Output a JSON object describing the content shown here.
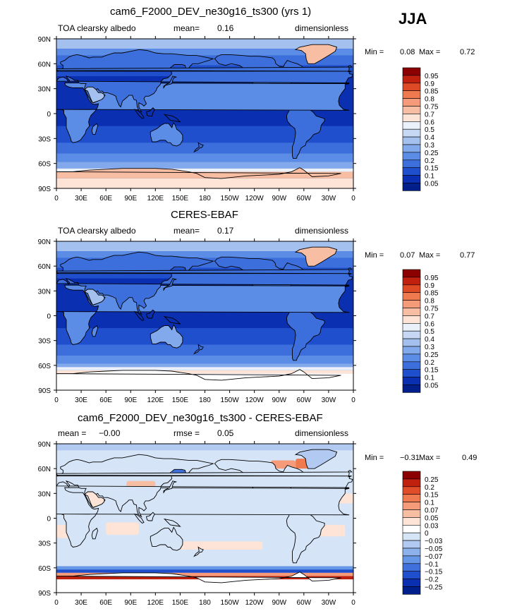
{
  "season": "JJA",
  "panels": [
    {
      "title": "cam6_F2000_DEV_ne30g16_ts300 (yrs 1)",
      "left_label": "TOA clearsky albedo",
      "mid_label": "mean=",
      "mid_value": "0.16",
      "right_label": "dimensionless",
      "min_label": "Min =",
      "min_value": "0.08",
      "max_label": "Max =",
      "max_value": "0.72",
      "colorbar": [
        "0.95",
        "0.9",
        "0.85",
        "0.8",
        "0.75",
        "0.7",
        "0.6",
        "0.5",
        "0.4",
        "0.3",
        "0.25",
        "0.2",
        "0.15",
        "0.1",
        "0.05"
      ]
    },
    {
      "title": "CERES-EBAF",
      "left_label": "TOA clearsky albedo",
      "mid_label": "mean=",
      "mid_value": "0.17",
      "right_label": "dimensionless",
      "min_label": "Min =",
      "min_value": "0.07",
      "max_label": "Max =",
      "max_value": "0.77",
      "colorbar": [
        "0.95",
        "0.9",
        "0.85",
        "0.8",
        "0.75",
        "0.7",
        "0.6",
        "0.5",
        "0.4",
        "0.3",
        "0.25",
        "0.2",
        "0.15",
        "0.1",
        "0.05"
      ]
    },
    {
      "title": "cam6_F2000_DEV_ne30g16_ts300 - CERES-EBAF",
      "left_label": "mean =",
      "left_value": "−0.00",
      "mid_label": "rmse =",
      "mid_value": "0.05",
      "right_label": "dimensionless",
      "min_label": "Min =",
      "min_value": "−0.31",
      "max_label": "Max =",
      "max_value": "0.49",
      "colorbar": [
        "0.25",
        "0.2",
        "0.15",
        "0.1",
        "0.07",
        "0.05",
        "0.03",
        "0",
        "−0.03",
        "−0.05",
        "−0.07",
        "−0.1",
        "−0.15",
        "−0.2",
        "−0.25"
      ]
    }
  ],
  "lat_ticks": [
    "90N",
    "60N",
    "30N",
    "0",
    "30S",
    "60S",
    "90S"
  ],
  "lon_ticks": [
    "0",
    "30E",
    "60E",
    "90E",
    "120E",
    "150E",
    "180",
    "150W",
    "120W",
    "90W",
    "60W",
    "30W",
    "0"
  ],
  "colors": {
    "albedo": [
      "#8b0000",
      "#c0210e",
      "#de4a26",
      "#f07a50",
      "#f59b79",
      "#f8bea4",
      "#fde4d6",
      "#eaf1fb",
      "#c6d8f3",
      "#a3c0ee",
      "#82a9ec",
      "#5c8de6",
      "#3c6fdc",
      "#1f4fcd",
      "#0a2fb0",
      "#001f8b"
    ],
    "diff": [
      "#8b0000",
      "#c0210e",
      "#e04d28",
      "#f07a50",
      "#f59b79",
      "#f8bea4",
      "#fde4d6",
      "#ffffff",
      "#d5e4f7",
      "#b2caf1",
      "#8cb1ec",
      "#6696e6",
      "#3f70dc",
      "#1f4fcd",
      "#0a2fb0",
      "#001f8b"
    ]
  }
}
